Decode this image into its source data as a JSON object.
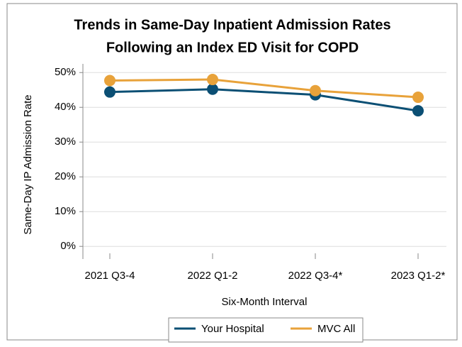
{
  "chart_data": {
    "type": "line",
    "title": [
      "Trends in Same-Day Inpatient Admission Rates",
      "Following an Index ED Visit for COPD"
    ],
    "x_label": "Six-Month Interval",
    "y_label": "Same-Day IP Admission Rate",
    "categories": [
      "2021 Q3-4",
      "2022 Q1-2",
      "2022 Q3-4*",
      "2023 Q1-2*"
    ],
    "series": [
      {
        "name": "Your Hospital",
        "color": "#0b4f74",
        "values": [
          44.4,
          45.2,
          43.6,
          39.0
        ]
      },
      {
        "name": "MVC All",
        "color": "#e8a23a",
        "values": [
          47.7,
          48.0,
          44.8,
          42.9
        ]
      }
    ],
    "ylim": [
      -2,
      52.5
    ],
    "yticks": [
      {
        "value": 0,
        "label": "0%"
      },
      {
        "value": 10,
        "label": "10%"
      },
      {
        "value": 20,
        "label": "20%"
      },
      {
        "value": 30,
        "label": "30%"
      },
      {
        "value": 40,
        "label": "40%"
      },
      {
        "value": 50,
        "label": "50%"
      }
    ],
    "grid": true,
    "legend": "bottom"
  }
}
